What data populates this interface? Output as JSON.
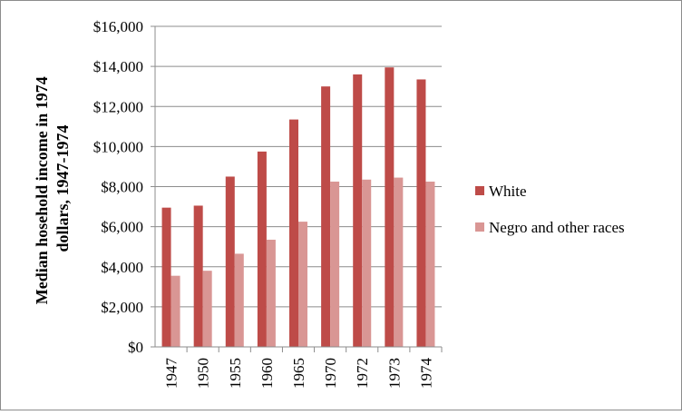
{
  "chart_data": {
    "type": "bar",
    "title": "",
    "xlabel": "",
    "ylabel_lines": [
      "Median hosehold income in 1974",
      "dollars, 1947-1974"
    ],
    "categories": [
      "1947",
      "1950",
      "1955",
      "1960",
      "1965",
      "1970",
      "1972",
      "1973",
      "1974"
    ],
    "series": [
      {
        "name": "White",
        "color": "#be4b48",
        "values": [
          6950,
          7050,
          8500,
          9750,
          11350,
          13000,
          13600,
          13950,
          13350
        ]
      },
      {
        "name": "Negro and other races",
        "color": "#d99694",
        "values": [
          3550,
          3800,
          4650,
          5350,
          6250,
          8250,
          8350,
          8450,
          8250
        ]
      }
    ],
    "ylim": [
      0,
      16000
    ],
    "y_ticks": [
      0,
      2000,
      4000,
      6000,
      8000,
      10000,
      12000,
      14000,
      16000
    ],
    "y_tick_labels": [
      "$0",
      "$2,000",
      "$4,000",
      "$6,000",
      "$8,000",
      "$10,000",
      "$12,000",
      "$14,000",
      "$16,000"
    ],
    "grid": true,
    "legend_position": "right",
    "x_tick_rotation": "vertical"
  }
}
